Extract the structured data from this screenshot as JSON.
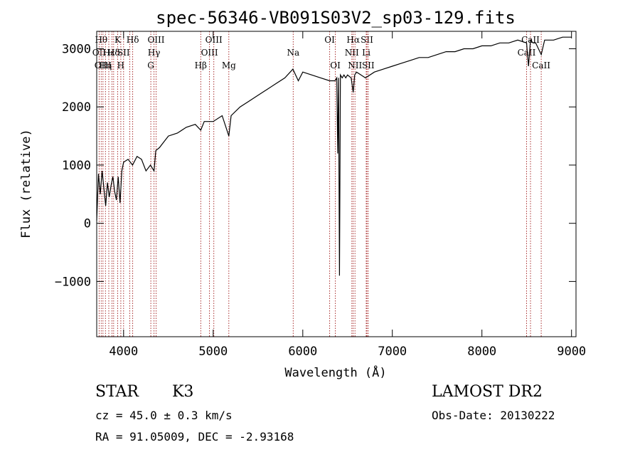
{
  "chart_data": {
    "type": "line",
    "title": "spec-56346-VB091S03V2_sp03-129.fits",
    "xlabel": "Wavelength (Å)",
    "ylabel": "Flux (relative)",
    "xlim": [
      3700,
      9050
    ],
    "ylim": [
      -1950,
      3300
    ],
    "xticks": [
      4000,
      5000,
      6000,
      7000,
      8000,
      9000
    ],
    "yticks": [
      -1000,
      0,
      1000,
      2000,
      3000
    ],
    "series": [
      {
        "x": [
          3700,
          3720,
          3740,
          3760,
          3780,
          3800,
          3820,
          3840,
          3860,
          3880,
          3900,
          3920,
          3940,
          3960,
          3980,
          4000,
          4050,
          4100,
          4150,
          4200,
          4250,
          4300,
          4340,
          4360,
          4400,
          4450,
          4500,
          4600,
          4700,
          4800,
          4861,
          4900,
          5000,
          5100,
          5175,
          5200,
          5300,
          5400,
          5500,
          5600,
          5700,
          5800,
          5890,
          5950,
          6000,
          6100,
          6200,
          6300,
          6360,
          6380,
          6390,
          6400,
          6410,
          6420,
          6440,
          6460,
          6480,
          6500,
          6540,
          6563,
          6580,
          6600,
          6650,
          6700,
          6800,
          6900,
          7000,
          7100,
          7200,
          7300,
          7400,
          7500,
          7600,
          7700,
          7800,
          7900,
          8000,
          8100,
          8200,
          8300,
          8400,
          8498,
          8520,
          8542,
          8570,
          8600,
          8662,
          8700,
          8800,
          8900,
          9000
        ],
        "y": [
          50,
          850,
          500,
          900,
          600,
          300,
          700,
          450,
          650,
          800,
          550,
          400,
          800,
          350,
          900,
          1050,
          1100,
          1000,
          1150,
          1100,
          900,
          1000,
          900,
          1250,
          1300,
          1400,
          1500,
          1550,
          1650,
          1700,
          1600,
          1750,
          1750,
          1850,
          1500,
          1850,
          2000,
          2100,
          2200,
          2300,
          2400,
          2500,
          2650,
          2450,
          2600,
          2550,
          2500,
          2450,
          2450,
          2500,
          1200,
          2500,
          -900,
          2550,
          2500,
          2550,
          2500,
          2550,
          2500,
          2250,
          2550,
          2600,
          2550,
          2500,
          2600,
          2650,
          2700,
          2750,
          2800,
          2850,
          2850,
          2900,
          2950,
          2950,
          3000,
          3000,
          3050,
          3050,
          3100,
          3100,
          3150,
          3100,
          2700,
          3150,
          3100,
          3100,
          2900,
          3150,
          3150,
          3200,
          3200
        ]
      }
    ],
    "line_markers": [
      {
        "wavelength": 3727,
        "label": "OII",
        "row": 1
      },
      {
        "wavelength": 3750,
        "label": "Hθ",
        "row": 0
      },
      {
        "wavelength": 3770,
        "label": "OIII",
        "row": 2
      },
      {
        "wavelength": 3798,
        "label": "Hη",
        "row": 2
      },
      {
        "wavelength": 3835,
        "label": "Hε",
        "row": 1
      },
      {
        "wavelength": 3870,
        "label": "",
        "row": 0
      },
      {
        "wavelength": 3889,
        "label": "Hδ",
        "row": 1
      },
      {
        "wavelength": 3934,
        "label": "K",
        "row": 0
      },
      {
        "wavelength": 3969,
        "label": "H",
        "row": 2
      },
      {
        "wavelength": 4000,
        "label": "SII",
        "row": 1
      },
      {
        "wavelength": 4068,
        "label": "",
        "row": 1
      },
      {
        "wavelength": 4102,
        "label": "Hδ",
        "row": 0
      },
      {
        "wavelength": 4304,
        "label": "G",
        "row": 2
      },
      {
        "wavelength": 4340,
        "label": "Hγ",
        "row": 1
      },
      {
        "wavelength": 4363,
        "label": "OIII",
        "row": 0
      },
      {
        "wavelength": 4861,
        "label": "Hβ",
        "row": 2
      },
      {
        "wavelength": 4959,
        "label": "OIII",
        "row": 1
      },
      {
        "wavelength": 5007,
        "label": "OIII",
        "row": 0
      },
      {
        "wavelength": 5175,
        "label": "Mg",
        "row": 2
      },
      {
        "wavelength": 5893,
        "label": "Na",
        "row": 1
      },
      {
        "wavelength": 6300,
        "label": "OI",
        "row": 0
      },
      {
        "wavelength": 6364,
        "label": "OI",
        "row": 2
      },
      {
        "wavelength": 6548,
        "label": "NII",
        "row": 1
      },
      {
        "wavelength": 6563,
        "label": "Hα",
        "row": 0
      },
      {
        "wavelength": 6583,
        "label": "NII",
        "row": 2
      },
      {
        "wavelength": 6708,
        "label": "Li",
        "row": 1
      },
      {
        "wavelength": 6716,
        "label": "SII",
        "row": 0
      },
      {
        "wavelength": 6731,
        "label": "SII",
        "row": 2
      },
      {
        "wavelength": 8498,
        "label": "CaII",
        "row": 1
      },
      {
        "wavelength": 8542,
        "label": "CaII",
        "row": 0
      },
      {
        "wavelength": 8662,
        "label": "CaII",
        "row": 2
      }
    ],
    "marker_color": "#a01818",
    "grid": false
  },
  "info": {
    "object_type": "STAR",
    "subclass": "K3",
    "survey": "LAMOST DR2",
    "cz": "cz = 45.0 ± 0.3 km/s",
    "obs_date": "Obs-Date: 20130222",
    "coords": "RA =  91.05009, DEC =  -2.93168"
  }
}
